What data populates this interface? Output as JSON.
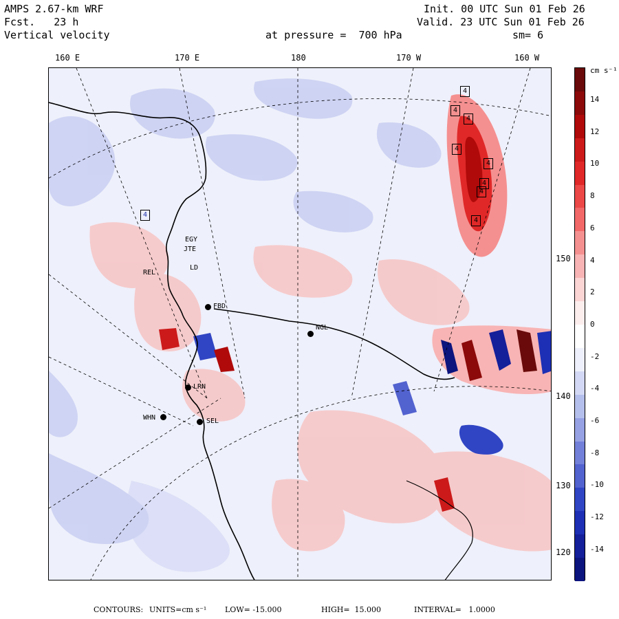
{
  "header": {
    "model": "AMPS 2.67-km WRF",
    "forecast": "Fcst.   23 h",
    "field": "Vertical velocity",
    "init": "Init. 00 UTC Sun 01 Feb 26",
    "valid": "Valid. 23 UTC Sun 01 Feb 26",
    "pressure": "at pressure =  700 hPa",
    "smooth": "sm= 6"
  },
  "longitude_ticks": [
    "160 E",
    "170 E",
    "180",
    "170 W",
    "160 W"
  ],
  "latitude_ticks": [
    "150 W",
    "140 W",
    "130 W",
    "120 W"
  ],
  "stations": [
    {
      "label": "EGY",
      "dot": false
    },
    {
      "label": "JTE",
      "dot": false
    },
    {
      "label": "LD",
      "dot": false
    },
    {
      "label": "REL",
      "dot": false
    },
    {
      "label": "FBD",
      "dot": true
    },
    {
      "label": "NGL",
      "dot": true
    },
    {
      "label": "LRN",
      "dot": true
    },
    {
      "label": "WHN",
      "dot": true
    },
    {
      "label": "SEL",
      "dot": true
    },
    {
      "label": "4",
      "dot": false
    }
  ],
  "highlight_marks": [
    "4",
    "4",
    "4",
    "4",
    "4",
    "4",
    "4",
    "4"
  ],
  "colorbar": {
    "units": "cm s⁻¹",
    "labels": [
      "14",
      "12",
      "10",
      "8",
      "6",
      "4",
      "2",
      "0",
      "-2",
      "-4",
      "-6",
      "-8",
      "-10",
      "-12",
      "-14"
    ],
    "colors": [
      "#6a0a0a",
      "#8c0a0a",
      "#b00a0a",
      "#cc1a1a",
      "#e02828",
      "#ec4848",
      "#f26868",
      "#f59090",
      "#f8b4b4",
      "#fbd4d4",
      "#fdeeee",
      "#ffffff",
      "#eef0fb",
      "#d3d9f4",
      "#b5bfec",
      "#95a1e3",
      "#7380d9",
      "#5262cf",
      "#3045c4",
      "#1d2fb4",
      "#141f9a",
      "#0c147e"
    ]
  },
  "footer": {
    "label": "CONTOURS:",
    "units": "UNITS=cm s⁻¹",
    "low": "LOW= -15.000",
    "high": "HIGH=  15.000",
    "interval": "INTERVAL=   1.0000"
  }
}
